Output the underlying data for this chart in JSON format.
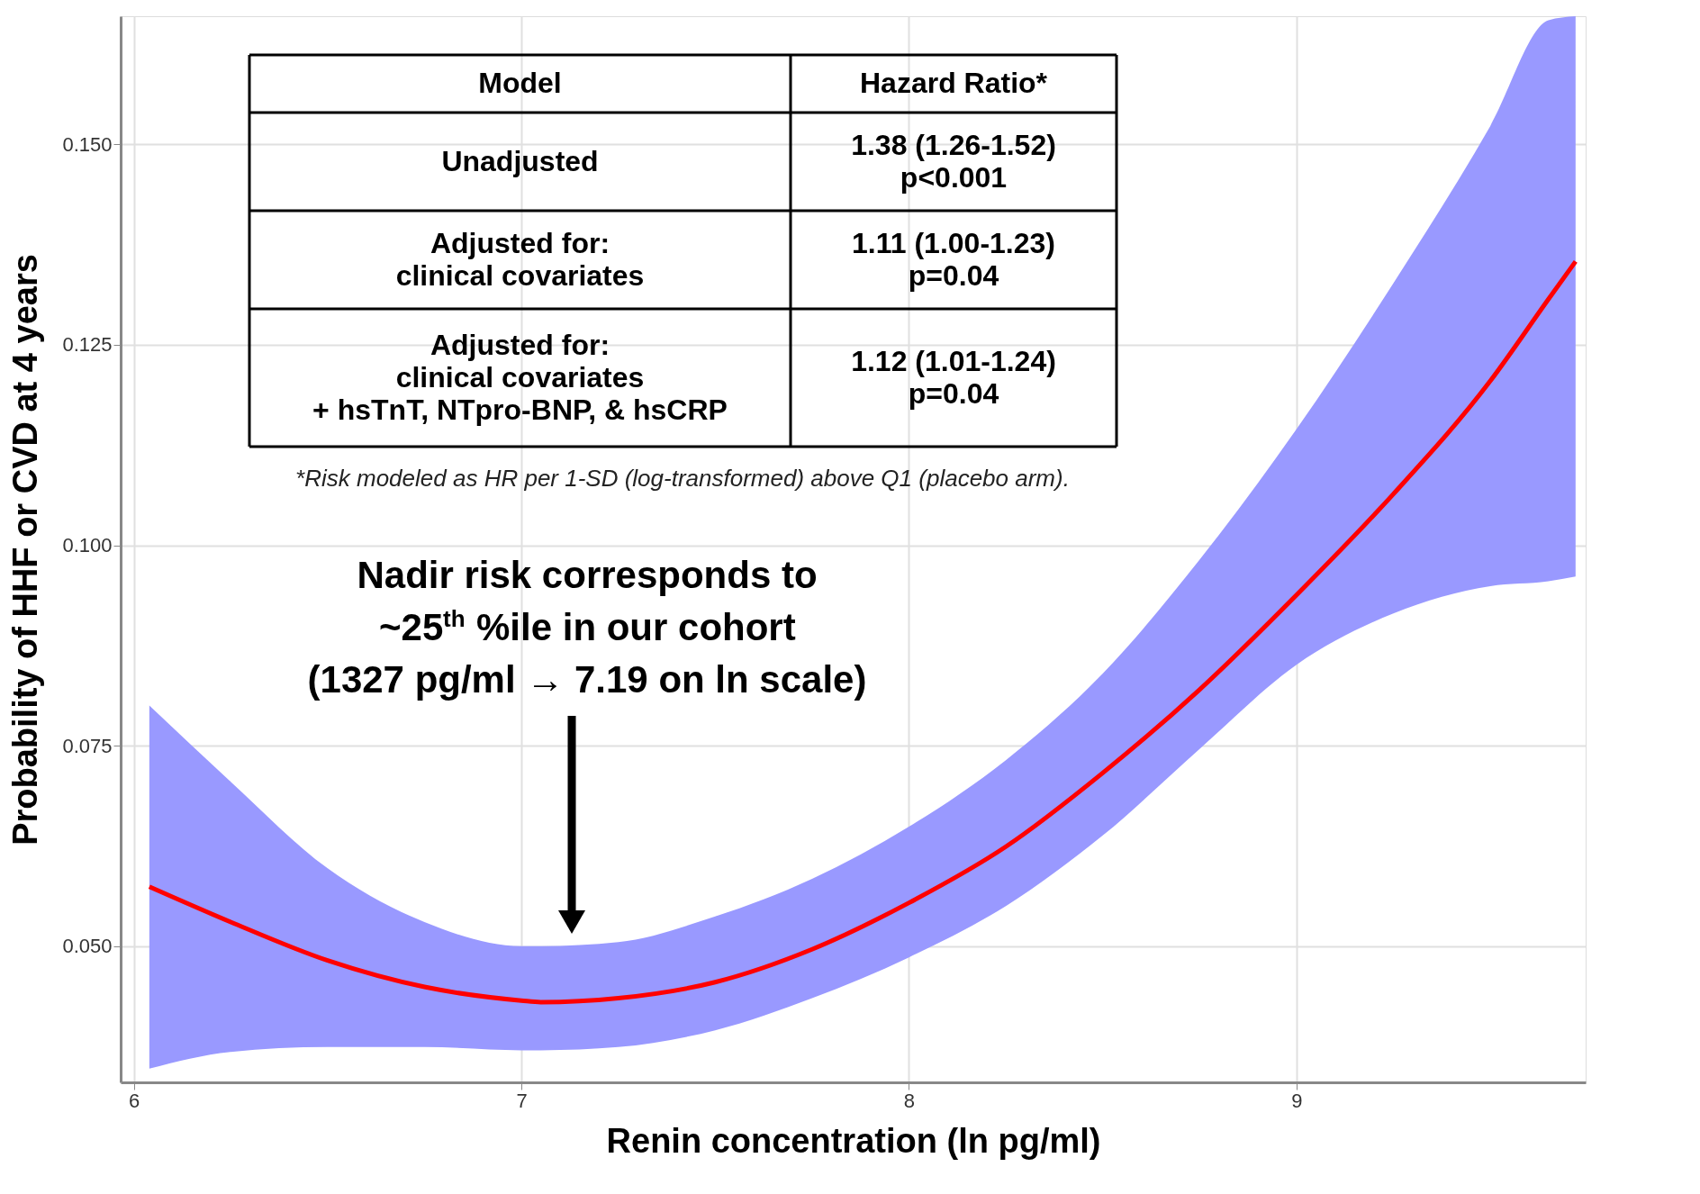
{
  "chart_data": {
    "type": "line",
    "xlabel": "Renin concentration (ln pg/ml)",
    "ylabel": "Probability of HHF or CVD at 4 years",
    "xlim": [
      5.966,
      9.746
    ],
    "ylim": [
      0.033,
      0.166
    ],
    "xticks": [
      {
        "value": 6,
        "label": "6"
      },
      {
        "value": 7,
        "label": "7"
      },
      {
        "value": 8,
        "label": "8"
      },
      {
        "value": 9,
        "label": "9"
      }
    ],
    "yticks": [
      {
        "value": 0.05,
        "label": "0.050"
      },
      0.075,
      {
        "value": 0.1,
        "label": "0.100"
      },
      0.125,
      {
        "value": 0.15,
        "label": "0.150"
      }
    ],
    "grid": true,
    "line_style": "solid",
    "marker": "none",
    "x": [
      6.04,
      6.25,
      6.5,
      6.75,
      7.0,
      7.05,
      7.25,
      7.5,
      7.75,
      8.0,
      8.25,
      8.5,
      8.75,
      9.0,
      9.25,
      9.5,
      9.65,
      9.72
    ],
    "series": [
      {
        "color": "#ff0000",
        "values": [
          0.0574,
          0.053,
          0.0482,
          0.0449,
          0.0432,
          0.043,
          0.0435,
          0.0455,
          0.0496,
          0.0554,
          0.0624,
          0.0716,
          0.082,
          0.0938,
          0.1064,
          0.1205,
          0.1307,
          0.1354
        ],
        "lower": [
          0.0347,
          0.0368,
          0.0374,
          0.0374,
          0.037,
          0.037,
          0.0374,
          0.0395,
          0.0435,
          0.0486,
          0.055,
          0.0638,
          0.0746,
          0.0851,
          0.0915,
          0.0949,
          0.0955,
          0.0961
        ],
        "upper": [
          0.08,
          0.0705,
          0.0597,
          0.053,
          0.05,
          0.05,
          0.0505,
          0.0537,
          0.0584,
          0.0649,
          0.0732,
          0.084,
          0.0982,
          0.1145,
          0.1327,
          0.1523,
          0.1655,
          0.166
        ]
      }
    ],
    "annotations": [
      "Model",
      "Hazard Ratio*",
      "Unadjusted",
      "1.38 (1.26-1.52)\np<0.001",
      "Adjusted for:\nclinical covariates",
      "1.11 (1.00-1.23)\np=0.04",
      "Adjusted for:\nclinical covariates\n+ hsTnT, NTpro-BNP, & hsCRP",
      "1.12 (1.01-1.24)\np=0.04",
      "*Risk modeled as HR per 1-SD (log-transformed) above Q1 (placebo arm).",
      {
        "text": "Nadir risk corresponds to\n~25$^{th}$ %ile in our cohort\n(1327 pg/ml → 7.19 on ln scale)",
        "x": 7.13,
        "y": 0.053
      }
    ]
  }
}
